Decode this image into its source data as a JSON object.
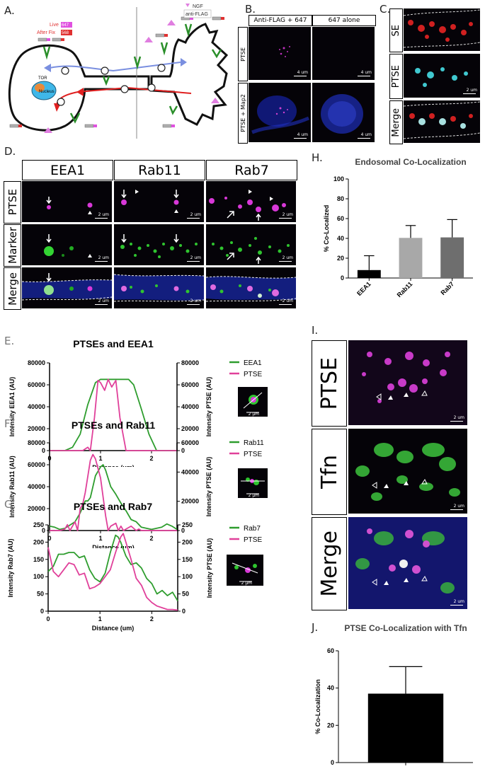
{
  "panels": {
    "A": "A.",
    "B": "B.",
    "C": "C.",
    "D": "D.",
    "E": "E.",
    "F": "F.",
    "G": "G.",
    "H": "H.",
    "I": "I.",
    "J": "J."
  },
  "diagramA": {
    "live_label": "Live",
    "live_tag": "647",
    "afterfix_label": "After Fix",
    "afterfix_tag": "568",
    "nucleus": "Nucleus",
    "soma_label": "TOR",
    "ngf": "NGF",
    "antiflag": "anti-FLAG",
    "colors": {
      "live_tag": "#e050e0",
      "afterfix_tag": "#e03030",
      "arrow_red": "#e02020",
      "arrow_blue": "#7a8fe0"
    }
  },
  "panelB": {
    "col1": "Anti-FLAG + 647",
    "col2": "647 alone",
    "row1": "PTSE",
    "row2": "PTSE + Map2",
    "scale": "4 um"
  },
  "panelC": {
    "rows": [
      "SE",
      "PTSE",
      "Merge"
    ],
    "scale": "2 um"
  },
  "panelD": {
    "cols": [
      "EEA1",
      "Rab11",
      "Rab7"
    ],
    "rows": [
      "PTSE",
      "Marker",
      "Merge"
    ],
    "scale": "2 um"
  },
  "panelI": {
    "rows": [
      "PTSE",
      "Tfn",
      "Merge"
    ],
    "scale": "2 um"
  },
  "charts": {
    "H": {
      "type": "bar",
      "title": "Endosomal Co-Localization",
      "ylabel": "% Co-Localized",
      "ylim": [
        0,
        100
      ],
      "yticks": [
        0,
        20,
        40,
        60,
        80,
        100
      ],
      "categories": [
        "EEA1",
        "Rab11",
        "Rab7"
      ],
      "values": [
        8,
        40.5,
        41
      ],
      "errors": [
        14.5,
        12.5,
        18
      ],
      "colors": [
        "#000000",
        "#a8a8a8",
        "#6e6e6e"
      ]
    },
    "E": {
      "type": "line",
      "title": "PTSEs and EEA1",
      "xlabel": "Distance (um)",
      "ylabel_left": "Intensity EEA1 (AU)",
      "ylabel_right": "Intensity PTSE (AU)",
      "xlim": [
        0,
        2.5
      ],
      "xticks": [
        0,
        1,
        2
      ],
      "ylim_left": [
        0,
        80000
      ],
      "yticks_left": [
        0,
        20000,
        40000,
        60000,
        80000
      ],
      "ylim_right": [
        0,
        80000
      ],
      "yticks_right": [
        0,
        20000,
        40000,
        60000,
        80000
      ],
      "series": [
        {
          "name": "EEA1",
          "color": "#2e9d2e",
          "axis": "left",
          "x": [
            0,
            0.3,
            0.45,
            0.6,
            0.75,
            0.9,
            1.0,
            1.1,
            1.2,
            1.4,
            1.55,
            1.65,
            1.8,
            1.95,
            2.1,
            2.5
          ],
          "y": [
            0,
            0,
            3000,
            15000,
            42000,
            62000,
            65000,
            65000,
            65000,
            65000,
            65000,
            60000,
            38000,
            15000,
            0,
            0
          ]
        },
        {
          "name": "PTSE",
          "color": "#e0409a",
          "axis": "right",
          "x": [
            0,
            0.65,
            0.75,
            0.8,
            0.88,
            0.95,
            1.0,
            1.08,
            1.15,
            1.22,
            1.3,
            1.38,
            1.5,
            2.5
          ],
          "y": [
            0,
            0,
            3000,
            0,
            30000,
            64000,
            62000,
            55000,
            65000,
            58000,
            64000,
            30000,
            0,
            0
          ]
        }
      ]
    },
    "F": {
      "type": "line",
      "title": "PTSEs and Rab11",
      "xlabel": "Distance (um)",
      "ylabel_left": "Intensity Rab11 (AU)",
      "ylabel_right": "Intensity PTSE (AU)",
      "xlim": [
        0,
        2.5
      ],
      "xticks": [
        0,
        1,
        2
      ],
      "ylim_left": [
        0,
        80000
      ],
      "yticks_left": [
        0,
        20000,
        40000,
        60000,
        80000
      ],
      "ylim_right": [
        0,
        60000
      ],
      "yticks_right": [
        0,
        20000,
        40000,
        60000
      ],
      "series": [
        {
          "name": "Rab11",
          "color": "#2e9d2e",
          "axis": "left",
          "x": [
            0,
            0.1,
            0.2,
            0.3,
            0.4,
            0.5,
            0.6,
            0.7,
            0.75,
            0.8,
            0.9,
            1.0,
            1.05,
            1.1,
            1.2,
            1.3,
            1.4,
            1.5,
            1.6,
            1.7,
            1.8,
            2.0,
            2.2,
            2.3,
            2.4,
            2.5
          ],
          "y": [
            4000,
            3000,
            1000,
            2000,
            5000,
            8000,
            16000,
            27000,
            27000,
            30000,
            50000,
            58000,
            60000,
            55000,
            40000,
            33000,
            25000,
            18000,
            10000,
            8000,
            3000,
            1000,
            3000,
            6000,
            4000,
            1000
          ]
        },
        {
          "name": "PTSE",
          "color": "#e0409a",
          "axis": "right",
          "x": [
            0,
            0.2,
            0.3,
            0.35,
            0.4,
            0.5,
            0.55,
            0.6,
            0.65,
            0.7,
            0.8,
            0.85,
            0.9,
            1.0,
            1.1,
            1.15,
            1.2,
            1.3,
            1.35,
            1.4,
            1.45,
            1.5,
            1.6,
            1.7,
            1.75,
            1.8,
            2.5
          ],
          "y": [
            0,
            0,
            1000,
            4000,
            0,
            6000,
            0,
            15000,
            18000,
            26000,
            48000,
            52000,
            49000,
            36000,
            10000,
            0,
            3000,
            5000,
            0,
            3000,
            0,
            1000,
            3000,
            0,
            1000,
            0,
            0
          ]
        }
      ]
    },
    "G": {
      "type": "line",
      "title": "PTSEs and Rab7",
      "xlabel": "Distance (um)",
      "ylabel_left": "Intensity Rab7 (AU)",
      "ylabel_right": "Intensity PTSE (AU)",
      "xlim": [
        0,
        2.5
      ],
      "xticks": [
        0,
        1,
        2
      ],
      "ylim_left": [
        0,
        250
      ],
      "yticks_left": [
        0,
        50,
        100,
        150,
        200,
        250
      ],
      "ylim_right": [
        0,
        250
      ],
      "yticks_right": [
        0,
        50,
        100,
        150,
        200,
        250
      ],
      "series": [
        {
          "name": "Rab7",
          "color": "#2e9d2e",
          "axis": "left",
          "x": [
            0,
            0.1,
            0.2,
            0.3,
            0.4,
            0.5,
            0.6,
            0.7,
            0.8,
            0.9,
            1.0,
            1.1,
            1.2,
            1.3,
            1.35,
            1.4,
            1.5,
            1.6,
            1.7,
            1.8,
            1.9,
            2.0,
            2.1,
            2.2,
            2.3,
            2.4,
            2.5
          ],
          "y": [
            115,
            130,
            165,
            165,
            170,
            170,
            155,
            160,
            120,
            95,
            85,
            110,
            170,
            220,
            215,
            200,
            160,
            135,
            140,
            125,
            95,
            80,
            50,
            60,
            45,
            55,
            30
          ]
        },
        {
          "name": "PTSE",
          "color": "#e0409a",
          "axis": "right",
          "x": [
            0,
            0.1,
            0.2,
            0.3,
            0.4,
            0.5,
            0.6,
            0.7,
            0.8,
            0.9,
            1.0,
            1.1,
            1.2,
            1.3,
            1.4,
            1.45,
            1.5,
            1.6,
            1.7,
            1.8,
            1.9,
            2.0,
            2.1,
            2.2,
            2.3,
            2.4,
            2.5
          ],
          "y": [
            185,
            115,
            100,
            120,
            140,
            135,
            105,
            110,
            65,
            70,
            80,
            100,
            120,
            170,
            215,
            225,
            200,
            150,
            95,
            75,
            40,
            25,
            15,
            10,
            5,
            5,
            3
          ]
        }
      ]
    },
    "J": {
      "type": "bar",
      "title": "PTSE Co-Localization with Tfn",
      "ylabel": "% Co-Localization",
      "ylim": [
        0,
        60
      ],
      "yticks": [
        0,
        20,
        40,
        60
      ],
      "categories": [
        ""
      ],
      "values": [
        37
      ],
      "errors": [
        14.5
      ],
      "colors": [
        "#000000"
      ]
    }
  },
  "scalebar": "2 μm"
}
